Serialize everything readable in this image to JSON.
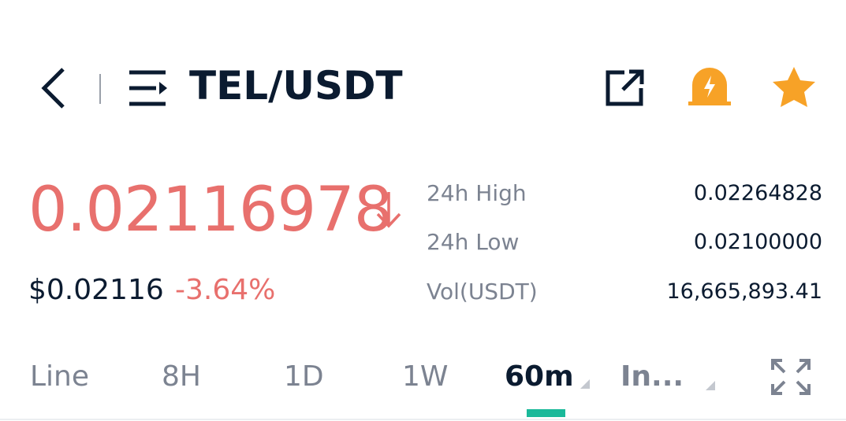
{
  "header": {
    "title": "TEL/USDT"
  },
  "price": {
    "last": "0.02116978",
    "fiat": "$0.02116",
    "change": "-3.64%"
  },
  "stats": [
    {
      "label": "24h High",
      "value": "0.02264828"
    },
    {
      "label": "24h Low",
      "value": "0.02100000"
    },
    {
      "label": "Vol(USDT)",
      "value": "16,665,893.41"
    }
  ],
  "tabs": [
    "Line",
    "8H",
    "1D",
    "1W",
    "60m",
    "In..."
  ]
}
